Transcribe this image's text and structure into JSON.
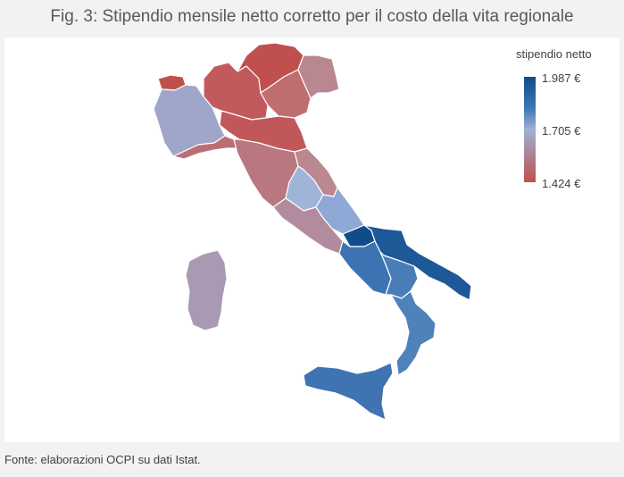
{
  "title": "Fig. 3: Stipendio mensile netto corretto per il costo della vita regionale",
  "legend": {
    "title": "stipendio netto",
    "max_label": "1.987 €",
    "mid_label": "1.705 €",
    "min_label": "1.424 €",
    "colors": {
      "high": "#0f4c8a",
      "mid": "#9fb1d6",
      "low": "#c0504d"
    }
  },
  "source": "Fonte: elaborazioni OCPI su dati Istat."
}
